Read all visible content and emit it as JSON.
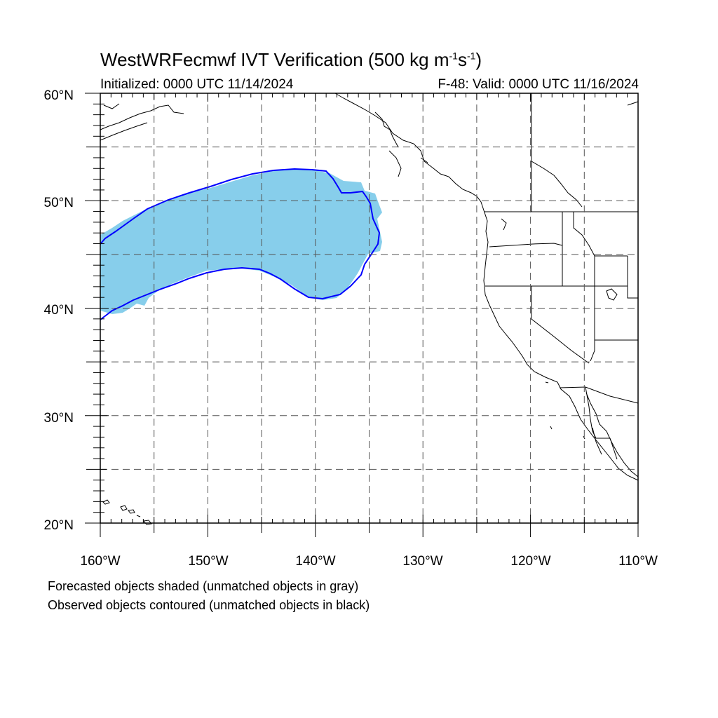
{
  "title": {
    "prefix": "WestWRFecmwf IVT Verification (500 kg m",
    "exp1": "-1",
    "mid": "s",
    "exp2": "-1",
    "suffix": ")"
  },
  "initialized": "Initialized: 0000 UTC 11/14/2024",
  "valid": "F-48: Valid: 0000 UTC 11/16/2024",
  "lat_labels": [
    "60°N",
    "50°N",
    "40°N",
    "30°N",
    "20°N"
  ],
  "lon_labels": [
    "160°W",
    "150°W",
    "140°W",
    "130°W",
    "120°W",
    "110°W"
  ],
  "footer": {
    "line1": "Forecasted objects shaded (unmatched objects in gray)",
    "line2": "Observed objects contoured (unmatched objects in black)"
  },
  "map": {
    "lon_range": [
      -160,
      -110
    ],
    "lat_range": [
      20,
      60
    ],
    "grid_lon_step": 5,
    "grid_lat_step": 5,
    "colors": {
      "forecast_fill": "#87ceeb",
      "observed_contour": "#0000ff",
      "coastline": "#000000",
      "grid": "#555555"
    }
  }
}
